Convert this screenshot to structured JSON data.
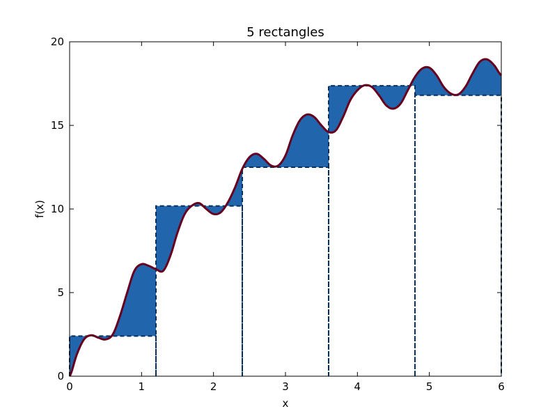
{
  "chart_data": {
    "type": "area",
    "title": "5 rectangles",
    "xlabel": "x",
    "ylabel": "f(x)",
    "xlim": [
      0,
      6
    ],
    "ylim": [
      0,
      20
    ],
    "x_ticks": [
      0,
      1,
      2,
      3,
      4,
      5,
      6
    ],
    "y_ticks": [
      0,
      5,
      10,
      15,
      20
    ],
    "grid": false,
    "colors": {
      "fill": "#2166ac",
      "curve": "#67001f",
      "rect_line": "#053061"
    },
    "rectangles": [
      {
        "x_start": 0.0,
        "x_end": 1.2,
        "height": 2.4
      },
      {
        "x_start": 1.2,
        "x_end": 2.4,
        "height": 10.18
      },
      {
        "x_start": 2.4,
        "x_end": 3.6,
        "height": 12.5
      },
      {
        "x_start": 3.6,
        "x_end": 4.8,
        "height": 17.37
      },
      {
        "x_start": 4.8,
        "x_end": 6.0,
        "height": 16.8
      }
    ],
    "curve": {
      "x": [
        0.0,
        0.1,
        0.2,
        0.3,
        0.4,
        0.5,
        0.6,
        0.7,
        0.8,
        0.9,
        1.0,
        1.1,
        1.2,
        1.3,
        1.4,
        1.5,
        1.6,
        1.7,
        1.8,
        1.9,
        2.0,
        2.1,
        2.2,
        2.3,
        2.4,
        2.5,
        2.6,
        2.7,
        2.8,
        2.9,
        3.0,
        3.1,
        3.2,
        3.3,
        3.4,
        3.5,
        3.6,
        3.7,
        3.8,
        3.9,
        4.0,
        4.1,
        4.2,
        4.3,
        4.4,
        4.5,
        4.6,
        4.7,
        4.8,
        4.9,
        5.0,
        5.1,
        5.2,
        5.3,
        5.4,
        5.5,
        5.6,
        5.7,
        5.8,
        5.9,
        6.0
      ],
      "y": [
        0.0,
        1.3,
        2.2,
        2.45,
        2.3,
        2.2,
        2.5,
        3.6,
        5.0,
        6.3,
        6.7,
        6.6,
        6.4,
        6.3,
        7.2,
        8.6,
        9.7,
        10.2,
        10.35,
        10.0,
        9.7,
        9.8,
        10.4,
        11.3,
        12.4,
        13.1,
        13.3,
        13.0,
        12.6,
        12.6,
        13.2,
        14.4,
        15.3,
        15.65,
        15.5,
        15.0,
        14.6,
        14.7,
        15.5,
        16.5,
        17.1,
        17.4,
        17.3,
        16.8,
        16.2,
        16.0,
        16.3,
        17.1,
        17.9,
        18.4,
        18.45,
        18.0,
        17.3,
        16.9,
        16.85,
        17.3,
        18.1,
        18.8,
        18.95,
        18.6,
        18.0
      ]
    }
  }
}
